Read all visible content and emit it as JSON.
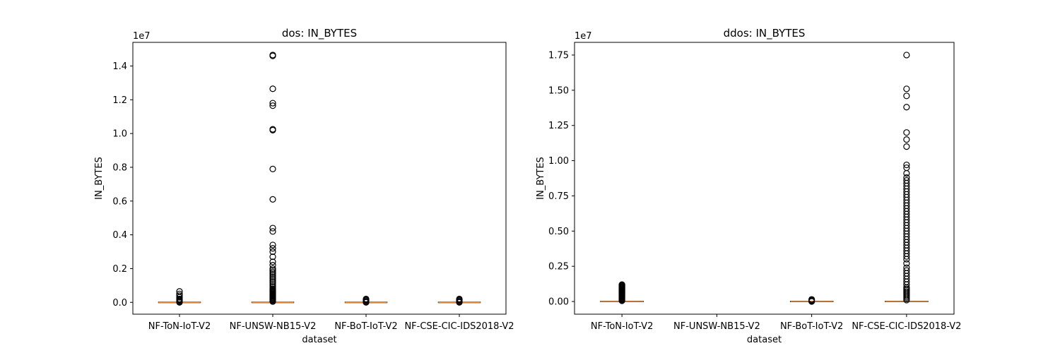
{
  "chart_data": [
    {
      "type": "box",
      "title": "dos: IN_BYTES",
      "xlabel": "dataset",
      "ylabel": "IN_BYTES",
      "offset_text": "1e7",
      "ylim": [
        -0.07,
        1.54
      ],
      "yticks": [
        0.0,
        0.2,
        0.4,
        0.6,
        0.8,
        1.0,
        1.2,
        1.4
      ],
      "ytick_labels": [
        "0.0",
        "0.2",
        "0.4",
        "0.6",
        "0.8",
        "1.0",
        "1.2",
        "1.4"
      ],
      "categories": [
        "NF-ToN-IoT-V2",
        "NF-UNSW-NB15-V2",
        "NF-BoT-IoT-V2",
        "NF-CSE-CIC-IDS2018-V2"
      ],
      "boxes": [
        {
          "median": 0.0,
          "q1": 0.0,
          "q3": 0.0,
          "whisker_low": 0.0,
          "whisker_high": 0.0,
          "outliers": [
            0.0,
            0.005,
            0.01,
            0.015,
            0.02,
            0.03,
            0.04,
            0.05,
            0.065
          ]
        },
        {
          "median": 0.0,
          "q1": 0.0,
          "q3": 0.0,
          "whisker_low": 0.0,
          "whisker_high": 0.0,
          "outliers": [
            0.005,
            0.01,
            0.015,
            0.02,
            0.025,
            0.03,
            0.035,
            0.04,
            0.045,
            0.05,
            0.055,
            0.06,
            0.065,
            0.07,
            0.075,
            0.08,
            0.09,
            0.1,
            0.11,
            0.12,
            0.13,
            0.14,
            0.15,
            0.16,
            0.17,
            0.18,
            0.19,
            0.2,
            0.22,
            0.24,
            0.27,
            0.3,
            0.32,
            0.34,
            0.42,
            0.44,
            0.61,
            0.79,
            1.02,
            1.025,
            1.165,
            1.18,
            1.265,
            1.46,
            1.465
          ]
        },
        {
          "median": 0.0,
          "q1": 0.0,
          "q3": 0.0,
          "whisker_low": 0.0,
          "whisker_high": 0.0,
          "outliers": [
            0.0,
            0.005,
            0.01,
            0.015,
            0.02
          ]
        },
        {
          "median": 0.0,
          "q1": 0.0,
          "q3": 0.0,
          "whisker_low": 0.0,
          "whisker_high": 0.0,
          "outliers": [
            0.0,
            0.005,
            0.01,
            0.015,
            0.02
          ]
        }
      ]
    },
    {
      "type": "box",
      "title": "ddos: IN_BYTES",
      "xlabel": "dataset",
      "ylabel": "IN_BYTES",
      "offset_text": "1e7",
      "ylim": [
        -0.09,
        1.84
      ],
      "yticks": [
        0.0,
        0.25,
        0.5,
        0.75,
        1.0,
        1.25,
        1.5,
        1.75
      ],
      "ytick_labels": [
        "0.00",
        "0.25",
        "0.50",
        "0.75",
        "1.00",
        "1.25",
        "1.50",
        "1.75"
      ],
      "categories": [
        "NF-ToN-IoT-V2",
        "NF-UNSW-NB15-V2",
        "NF-BoT-IoT-V2",
        "NF-CSE-CIC-IDS2018-V2"
      ],
      "boxes": [
        {
          "median": 0.0,
          "q1": 0.0,
          "q3": 0.0,
          "whisker_low": 0.0,
          "whisker_high": 0.0,
          "outliers": [
            0.005,
            0.01,
            0.015,
            0.02,
            0.025,
            0.03,
            0.035,
            0.04,
            0.045,
            0.05,
            0.055,
            0.06,
            0.065,
            0.07,
            0.075,
            0.08,
            0.085,
            0.09,
            0.095,
            0.1,
            0.105,
            0.11,
            0.115,
            0.12
          ]
        },
        null,
        {
          "median": 0.0,
          "q1": 0.0,
          "q3": 0.0,
          "whisker_low": 0.0,
          "whisker_high": 0.0,
          "outliers": [
            0.0,
            0.005,
            0.01,
            0.015
          ]
        },
        {
          "median": 0.0,
          "q1": 0.0,
          "q3": 0.0,
          "whisker_low": 0.0,
          "whisker_high": 0.0,
          "outliers": [
            0.01,
            0.02,
            0.03,
            0.04,
            0.05,
            0.06,
            0.07,
            0.08,
            0.09,
            0.1,
            0.12,
            0.14,
            0.16,
            0.18,
            0.2,
            0.22,
            0.24,
            0.27,
            0.3,
            0.32,
            0.34,
            0.36,
            0.38,
            0.4,
            0.42,
            0.44,
            0.46,
            0.48,
            0.5,
            0.52,
            0.54,
            0.56,
            0.58,
            0.6,
            0.62,
            0.64,
            0.66,
            0.68,
            0.7,
            0.72,
            0.74,
            0.76,
            0.78,
            0.8,
            0.82,
            0.84,
            0.86,
            0.88,
            0.91,
            0.95,
            0.97,
            1.1,
            1.15,
            1.2,
            1.38,
            1.46,
            1.51,
            1.75
          ]
        }
      ]
    }
  ]
}
